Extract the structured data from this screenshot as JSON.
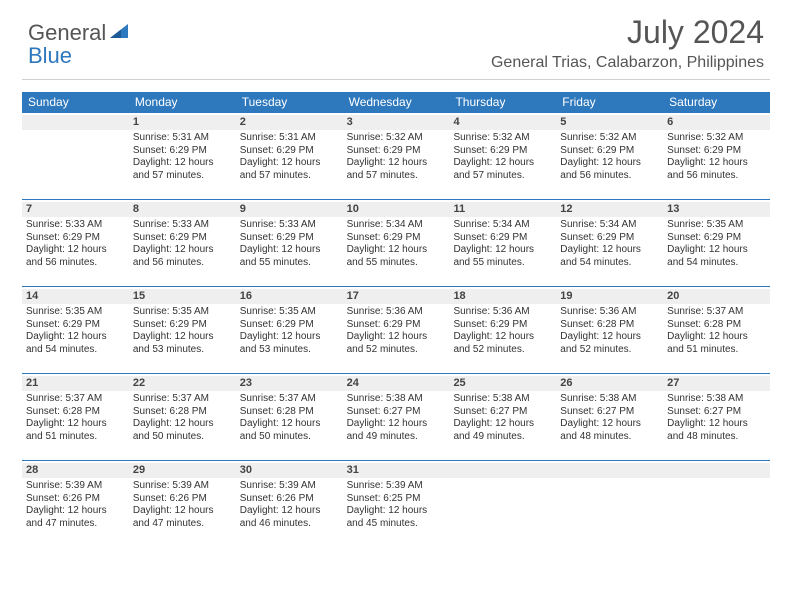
{
  "logo": {
    "text1": "General",
    "text2": "Blue"
  },
  "title": "July 2024",
  "subtitle": "General Trias, Calabarzon, Philippines",
  "colors": {
    "accent": "#2e78bd",
    "bg": "#ffffff",
    "gray_bar": "#efefef",
    "text": "#333333"
  },
  "dow": [
    "Sunday",
    "Monday",
    "Tuesday",
    "Wednesday",
    "Thursday",
    "Friday",
    "Saturday"
  ],
  "weeks": [
    [
      null,
      {
        "n": "1",
        "sr": "Sunrise: 5:31 AM",
        "ss": "Sunset: 6:29 PM",
        "d1": "Daylight: 12 hours",
        "d2": "and 57 minutes."
      },
      {
        "n": "2",
        "sr": "Sunrise: 5:31 AM",
        "ss": "Sunset: 6:29 PM",
        "d1": "Daylight: 12 hours",
        "d2": "and 57 minutes."
      },
      {
        "n": "3",
        "sr": "Sunrise: 5:32 AM",
        "ss": "Sunset: 6:29 PM",
        "d1": "Daylight: 12 hours",
        "d2": "and 57 minutes."
      },
      {
        "n": "4",
        "sr": "Sunrise: 5:32 AM",
        "ss": "Sunset: 6:29 PM",
        "d1": "Daylight: 12 hours",
        "d2": "and 57 minutes."
      },
      {
        "n": "5",
        "sr": "Sunrise: 5:32 AM",
        "ss": "Sunset: 6:29 PM",
        "d1": "Daylight: 12 hours",
        "d2": "and 56 minutes."
      },
      {
        "n": "6",
        "sr": "Sunrise: 5:32 AM",
        "ss": "Sunset: 6:29 PM",
        "d1": "Daylight: 12 hours",
        "d2": "and 56 minutes."
      }
    ],
    [
      {
        "n": "7",
        "sr": "Sunrise: 5:33 AM",
        "ss": "Sunset: 6:29 PM",
        "d1": "Daylight: 12 hours",
        "d2": "and 56 minutes."
      },
      {
        "n": "8",
        "sr": "Sunrise: 5:33 AM",
        "ss": "Sunset: 6:29 PM",
        "d1": "Daylight: 12 hours",
        "d2": "and 56 minutes."
      },
      {
        "n": "9",
        "sr": "Sunrise: 5:33 AM",
        "ss": "Sunset: 6:29 PM",
        "d1": "Daylight: 12 hours",
        "d2": "and 55 minutes."
      },
      {
        "n": "10",
        "sr": "Sunrise: 5:34 AM",
        "ss": "Sunset: 6:29 PM",
        "d1": "Daylight: 12 hours",
        "d2": "and 55 minutes."
      },
      {
        "n": "11",
        "sr": "Sunrise: 5:34 AM",
        "ss": "Sunset: 6:29 PM",
        "d1": "Daylight: 12 hours",
        "d2": "and 55 minutes."
      },
      {
        "n": "12",
        "sr": "Sunrise: 5:34 AM",
        "ss": "Sunset: 6:29 PM",
        "d1": "Daylight: 12 hours",
        "d2": "and 54 minutes."
      },
      {
        "n": "13",
        "sr": "Sunrise: 5:35 AM",
        "ss": "Sunset: 6:29 PM",
        "d1": "Daylight: 12 hours",
        "d2": "and 54 minutes."
      }
    ],
    [
      {
        "n": "14",
        "sr": "Sunrise: 5:35 AM",
        "ss": "Sunset: 6:29 PM",
        "d1": "Daylight: 12 hours",
        "d2": "and 54 minutes."
      },
      {
        "n": "15",
        "sr": "Sunrise: 5:35 AM",
        "ss": "Sunset: 6:29 PM",
        "d1": "Daylight: 12 hours",
        "d2": "and 53 minutes."
      },
      {
        "n": "16",
        "sr": "Sunrise: 5:35 AM",
        "ss": "Sunset: 6:29 PM",
        "d1": "Daylight: 12 hours",
        "d2": "and 53 minutes."
      },
      {
        "n": "17",
        "sr": "Sunrise: 5:36 AM",
        "ss": "Sunset: 6:29 PM",
        "d1": "Daylight: 12 hours",
        "d2": "and 52 minutes."
      },
      {
        "n": "18",
        "sr": "Sunrise: 5:36 AM",
        "ss": "Sunset: 6:29 PM",
        "d1": "Daylight: 12 hours",
        "d2": "and 52 minutes."
      },
      {
        "n": "19",
        "sr": "Sunrise: 5:36 AM",
        "ss": "Sunset: 6:28 PM",
        "d1": "Daylight: 12 hours",
        "d2": "and 52 minutes."
      },
      {
        "n": "20",
        "sr": "Sunrise: 5:37 AM",
        "ss": "Sunset: 6:28 PM",
        "d1": "Daylight: 12 hours",
        "d2": "and 51 minutes."
      }
    ],
    [
      {
        "n": "21",
        "sr": "Sunrise: 5:37 AM",
        "ss": "Sunset: 6:28 PM",
        "d1": "Daylight: 12 hours",
        "d2": "and 51 minutes."
      },
      {
        "n": "22",
        "sr": "Sunrise: 5:37 AM",
        "ss": "Sunset: 6:28 PM",
        "d1": "Daylight: 12 hours",
        "d2": "and 50 minutes."
      },
      {
        "n": "23",
        "sr": "Sunrise: 5:37 AM",
        "ss": "Sunset: 6:28 PM",
        "d1": "Daylight: 12 hours",
        "d2": "and 50 minutes."
      },
      {
        "n": "24",
        "sr": "Sunrise: 5:38 AM",
        "ss": "Sunset: 6:27 PM",
        "d1": "Daylight: 12 hours",
        "d2": "and 49 minutes."
      },
      {
        "n": "25",
        "sr": "Sunrise: 5:38 AM",
        "ss": "Sunset: 6:27 PM",
        "d1": "Daylight: 12 hours",
        "d2": "and 49 minutes."
      },
      {
        "n": "26",
        "sr": "Sunrise: 5:38 AM",
        "ss": "Sunset: 6:27 PM",
        "d1": "Daylight: 12 hours",
        "d2": "and 48 minutes."
      },
      {
        "n": "27",
        "sr": "Sunrise: 5:38 AM",
        "ss": "Sunset: 6:27 PM",
        "d1": "Daylight: 12 hours",
        "d2": "and 48 minutes."
      }
    ],
    [
      {
        "n": "28",
        "sr": "Sunrise: 5:39 AM",
        "ss": "Sunset: 6:26 PM",
        "d1": "Daylight: 12 hours",
        "d2": "and 47 minutes."
      },
      {
        "n": "29",
        "sr": "Sunrise: 5:39 AM",
        "ss": "Sunset: 6:26 PM",
        "d1": "Daylight: 12 hours",
        "d2": "and 47 minutes."
      },
      {
        "n": "30",
        "sr": "Sunrise: 5:39 AM",
        "ss": "Sunset: 6:26 PM",
        "d1": "Daylight: 12 hours",
        "d2": "and 46 minutes."
      },
      {
        "n": "31",
        "sr": "Sunrise: 5:39 AM",
        "ss": "Sunset: 6:25 PM",
        "d1": "Daylight: 12 hours",
        "d2": "and 45 minutes."
      },
      null,
      null,
      null
    ]
  ]
}
